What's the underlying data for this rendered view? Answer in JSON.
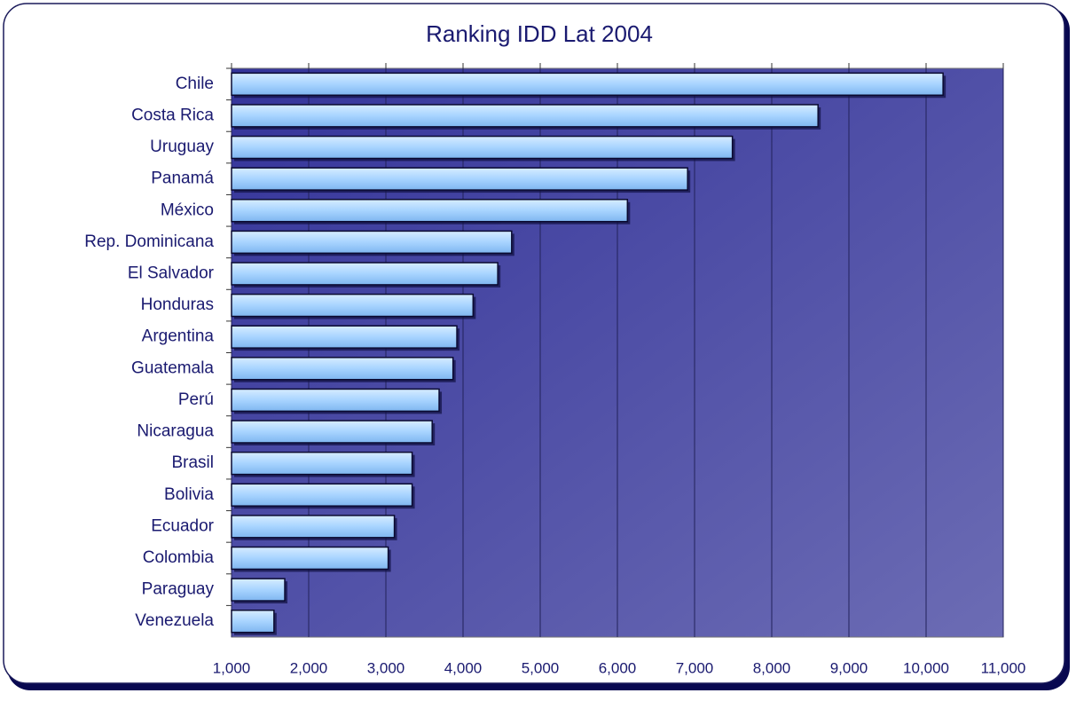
{
  "chart_data": {
    "type": "barh",
    "title": "Ranking IDD Lat 2004",
    "categories": [
      "Chile",
      "Costa Rica",
      "Uruguay",
      "Panamá",
      "México",
      "Rep. Dominicana",
      "El Salvador",
      "Honduras",
      "Argentina",
      "Guatemala",
      "Perú",
      "Nicaragua",
      "Brasil",
      "Bolivia",
      "Ecuador",
      "Colombia",
      "Paraguay",
      "Venezuela"
    ],
    "values": [
      10220,
      8600,
      7490,
      6910,
      6130,
      4630,
      4450,
      4130,
      3920,
      3870,
      3690,
      3600,
      3340,
      3340,
      3110,
      3030,
      1690,
      1550
    ],
    "color": "#a8d4ff",
    "xlim": [
      1000,
      11000
    ],
    "xticks": [
      {
        "value": 1000,
        "label": "1,000"
      },
      {
        "value": 2000,
        "label": "2,000"
      },
      {
        "value": 3000,
        "label": "3,000"
      },
      {
        "value": 4000,
        "label": "4,000"
      },
      {
        "value": 5000,
        "label": "5,000"
      },
      {
        "value": 6000,
        "label": "6,000"
      },
      {
        "value": 7000,
        "label": "7,000"
      },
      {
        "value": 8000,
        "label": "8,000"
      },
      {
        "value": 9000,
        "label": "9,000"
      },
      {
        "value": 10000,
        "label": "10,000"
      },
      {
        "value": 11000,
        "label": "11,000"
      }
    ],
    "grid": true
  }
}
